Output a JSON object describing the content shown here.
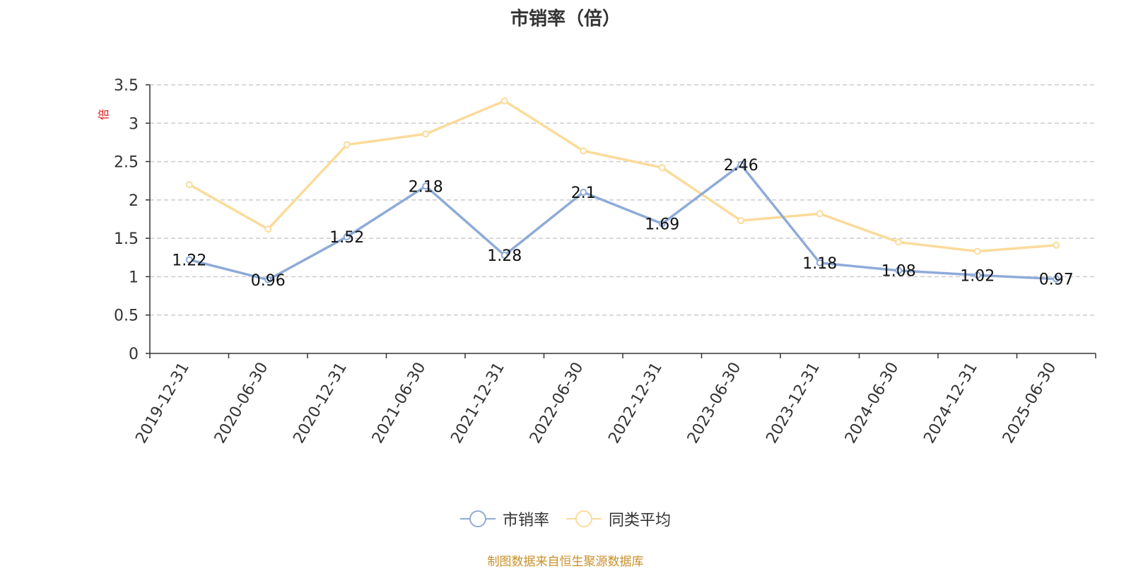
{
  "chart_data": {
    "type": "line",
    "title": "市销率（倍）",
    "ylabel": "倍",
    "xlabel": "",
    "categories": [
      "2019-12-31",
      "2020-06-30",
      "2020-12-31",
      "2021-06-30",
      "2021-12-31",
      "2022-06-30",
      "2022-12-31",
      "2023-06-30",
      "2023-12-31",
      "2024-06-30",
      "2024-12-31",
      "2025-06-30"
    ],
    "yticks": [
      "0",
      "0.5",
      "1",
      "1.5",
      "2",
      "2.5",
      "3",
      "3.5"
    ],
    "ylim": [
      0,
      3.5
    ],
    "grid": true,
    "legend_position": "bottom",
    "series": [
      {
        "name": "市销率",
        "color": "#8eabd8",
        "values": [
          1.22,
          0.96,
          1.52,
          2.18,
          1.28,
          2.1,
          1.69,
          2.46,
          1.18,
          1.08,
          1.02,
          0.97
        ],
        "labels": [
          "1.22",
          "0.96",
          "1.52",
          "2.18",
          "1.28",
          "2.1",
          "1.69",
          "2.46",
          "1.18",
          "1.08",
          "1.02",
          "0.97"
        ]
      },
      {
        "name": "同类平均",
        "color": "#fbdb9a",
        "values": [
          2.2,
          1.62,
          2.72,
          2.86,
          3.29,
          2.64,
          2.42,
          1.73,
          1.82,
          1.45,
          1.33,
          1.41
        ]
      }
    ]
  },
  "source_note": "制图数据来自恒生聚源数据库"
}
